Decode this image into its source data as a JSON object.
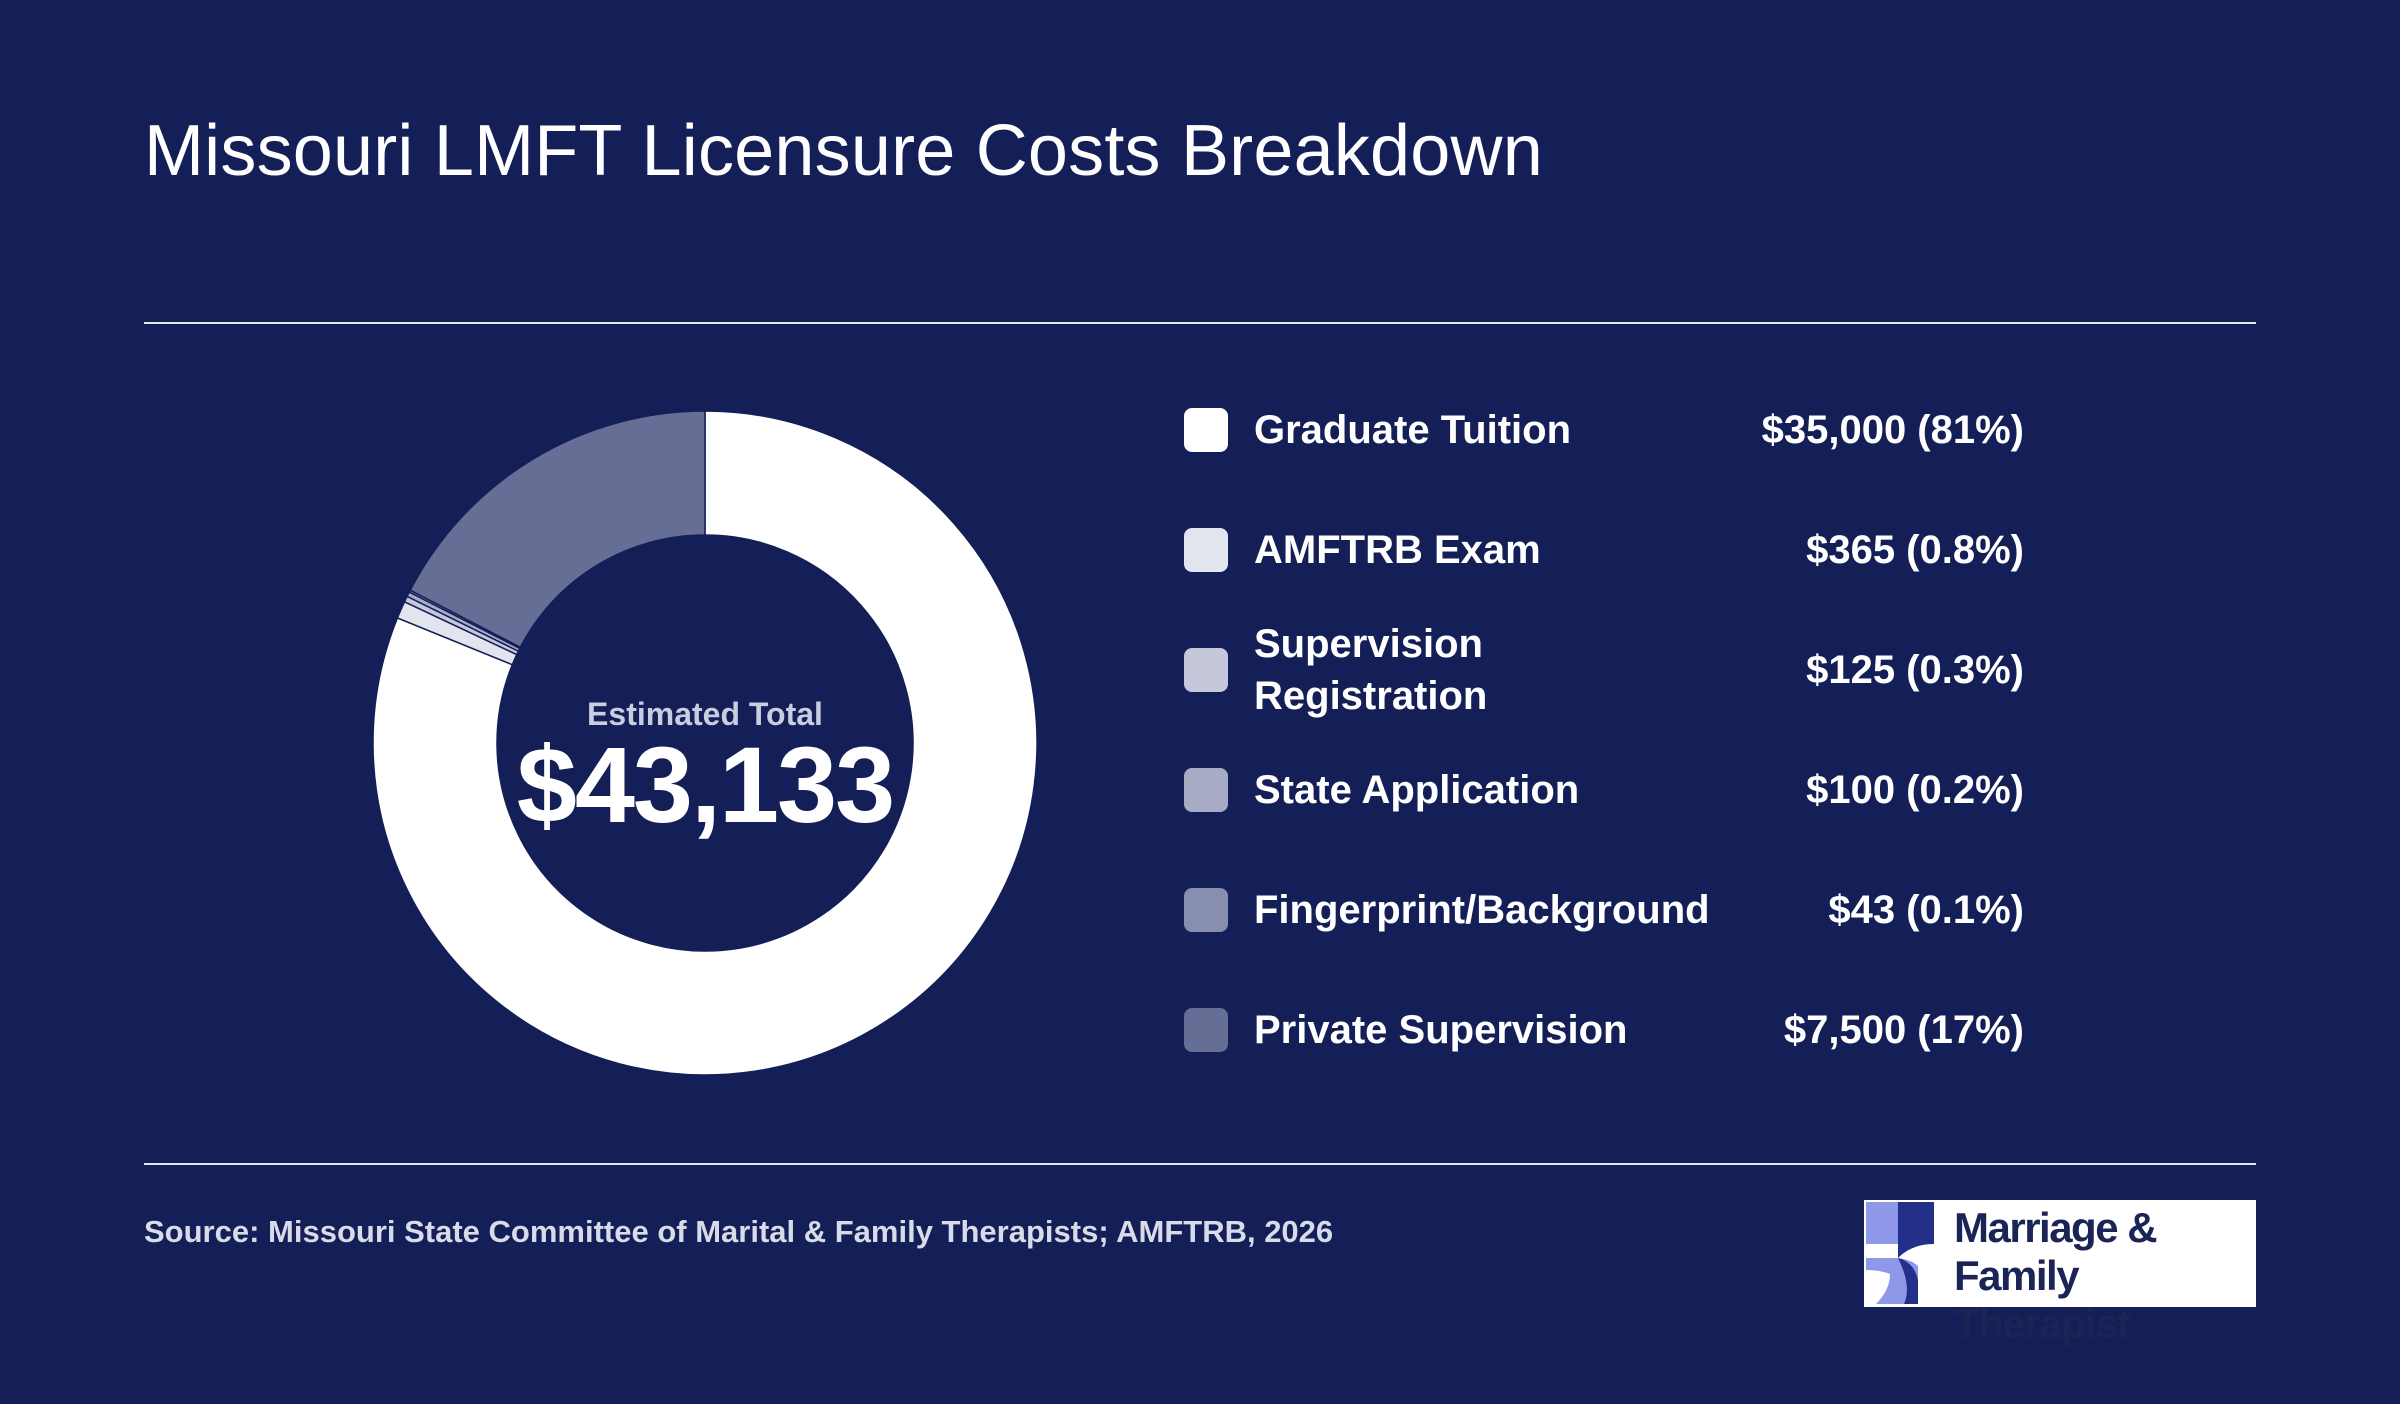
{
  "title": "Missouri LMFT Licensure Costs Breakdown",
  "center": {
    "label": "Estimated Total",
    "value": "$43,133"
  },
  "source": "Source: Missouri State Committee of Marital & Family Therapists; AMFTRB, 2026",
  "logo": {
    "line1": "Marriage & Family",
    "line2": "Therapist"
  },
  "colors": {
    "background": "#141f57",
    "accent_light": "#8f97e8",
    "accent_dark": "#23308a"
  },
  "chart_data": {
    "type": "pie",
    "donut": true,
    "categories": [
      "Graduate Tuition",
      "AMFTRB Exam",
      "Supervision Registration",
      "State Application",
      "Fingerprint/Background",
      "Private Supervision"
    ],
    "values": [
      35000,
      365,
      125,
      100,
      43,
      7500
    ],
    "value_labels": [
      "$35,000 (81%)",
      "$365 (0.8%)",
      "$125 (0.3%)",
      "$100 (0.2%)",
      "$43 (0.1%)",
      "$7,500 (17%)"
    ],
    "colors": [
      "#ffffff",
      "#e3e5ee",
      "#c5c8da",
      "#a7abc4",
      "#888fae",
      "#676e96"
    ],
    "legend_label_lines": [
      [
        "Graduate Tuition"
      ],
      [
        "AMFTRB Exam"
      ],
      [
        "Supervision",
        "Registration"
      ],
      [
        "State Application"
      ],
      [
        "Fingerprint/Background"
      ],
      [
        "Private Supervision"
      ]
    ],
    "legend_position": "right"
  }
}
